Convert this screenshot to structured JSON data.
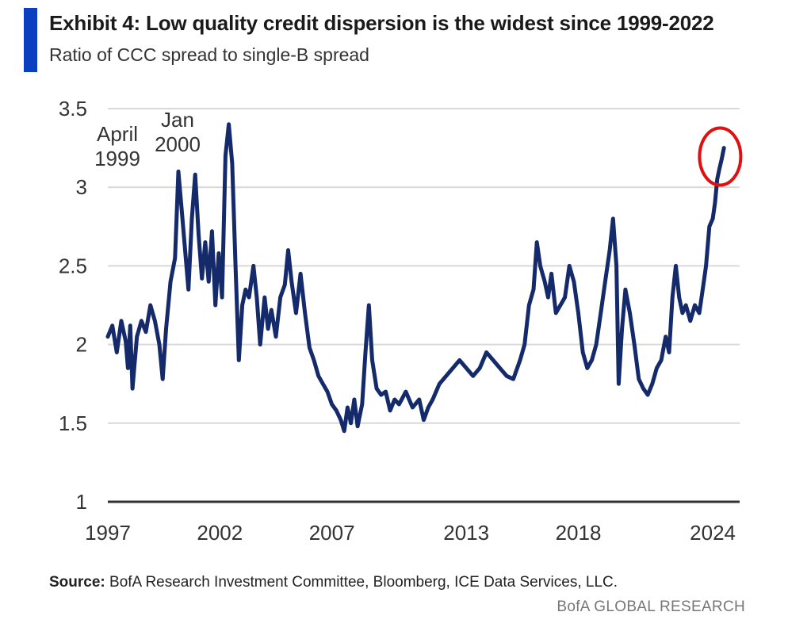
{
  "header": {
    "title": "Exhibit 4: Low quality credit dispersion is the widest since 1999-2022",
    "subtitle": "Ratio of CCC spread to single-B spread"
  },
  "footer": {
    "source_label": "Source:",
    "source_text": "BofA Research Investment Committee, Bloomberg, ICE Data Services, LLC.",
    "brand": "BofA GLOBAL RESEARCH"
  },
  "colors": {
    "line": "#142a6b",
    "accent": "#0a3fbf",
    "highlight": "#e01010",
    "grid": "#d9d9d9",
    "axis": "#333333"
  },
  "chart_data": {
    "type": "line",
    "title": "Exhibit 4: Low quality credit dispersion is the widest since 1999-2022",
    "subtitle": "Ratio of CCC spread to single-B spread",
    "xlabel": "",
    "ylabel": "",
    "xlim": [
      1997,
      2025.2
    ],
    "ylim": [
      1,
      3.5
    ],
    "x_ticks": [
      1997,
      2002,
      2007,
      2013,
      2018,
      2024
    ],
    "y_ticks": [
      1,
      1.5,
      2,
      2.5,
      3,
      3.5
    ],
    "grid": true,
    "annotations": [
      {
        "text_lines": [
          "April",
          "1999"
        ],
        "x": 1999.3,
        "y": 3.1
      },
      {
        "text_lines": [
          "Jan",
          "2000"
        ],
        "x": 2002.2,
        "y": 3.42
      }
    ],
    "highlight": {
      "shape": "circle",
      "x": 2024.4,
      "y": 3.18
    },
    "series": [
      {
        "name": "CCC / single-B spread ratio",
        "points": [
          [
            1997.0,
            2.05
          ],
          [
            1997.2,
            2.12
          ],
          [
            1997.4,
            1.95
          ],
          [
            1997.6,
            2.15
          ],
          [
            1997.8,
            2.02
          ],
          [
            1997.9,
            1.85
          ],
          [
            1998.0,
            2.12
          ],
          [
            1998.1,
            1.72
          ],
          [
            1998.3,
            2.05
          ],
          [
            1998.5,
            2.15
          ],
          [
            1998.7,
            2.08
          ],
          [
            1998.9,
            2.25
          ],
          [
            1999.1,
            2.15
          ],
          [
            1999.3,
            2.0
          ],
          [
            1999.45,
            1.78
          ],
          [
            1999.6,
            2.1
          ],
          [
            1999.8,
            2.4
          ],
          [
            2000.0,
            2.55
          ],
          [
            2000.15,
            3.1
          ],
          [
            2000.3,
            2.85
          ],
          [
            2000.45,
            2.6
          ],
          [
            2000.6,
            2.35
          ],
          [
            2000.75,
            2.8
          ],
          [
            2000.9,
            3.08
          ],
          [
            2001.05,
            2.7
          ],
          [
            2001.2,
            2.42
          ],
          [
            2001.35,
            2.65
          ],
          [
            2001.5,
            2.4
          ],
          [
            2001.65,
            2.72
          ],
          [
            2001.8,
            2.25
          ],
          [
            2001.95,
            2.58
          ],
          [
            2002.1,
            2.3
          ],
          [
            2002.25,
            3.2
          ],
          [
            2002.4,
            3.4
          ],
          [
            2002.55,
            3.15
          ],
          [
            2002.7,
            2.5
          ],
          [
            2002.85,
            1.9
          ],
          [
            2003.0,
            2.25
          ],
          [
            2003.15,
            2.35
          ],
          [
            2003.3,
            2.3
          ],
          [
            2003.5,
            2.5
          ],
          [
            2003.65,
            2.3
          ],
          [
            2003.8,
            2.0
          ],
          [
            2004.0,
            2.3
          ],
          [
            2004.15,
            2.1
          ],
          [
            2004.3,
            2.22
          ],
          [
            2004.5,
            2.05
          ],
          [
            2004.7,
            2.3
          ],
          [
            2004.9,
            2.38
          ],
          [
            2005.05,
            2.6
          ],
          [
            2005.2,
            2.4
          ],
          [
            2005.4,
            2.2
          ],
          [
            2005.6,
            2.45
          ],
          [
            2005.8,
            2.2
          ],
          [
            2006.0,
            1.98
          ],
          [
            2006.2,
            1.9
          ],
          [
            2006.4,
            1.8
          ],
          [
            2006.6,
            1.75
          ],
          [
            2006.8,
            1.7
          ],
          [
            2007.0,
            1.62
          ],
          [
            2007.2,
            1.58
          ],
          [
            2007.4,
            1.52
          ],
          [
            2007.55,
            1.45
          ],
          [
            2007.7,
            1.6
          ],
          [
            2007.85,
            1.5
          ],
          [
            2008.0,
            1.65
          ],
          [
            2008.15,
            1.48
          ],
          [
            2008.35,
            1.62
          ],
          [
            2008.5,
            1.95
          ],
          [
            2008.65,
            2.25
          ],
          [
            2008.8,
            1.9
          ],
          [
            2009.0,
            1.72
          ],
          [
            2009.2,
            1.68
          ],
          [
            2009.4,
            1.7
          ],
          [
            2009.6,
            1.58
          ],
          [
            2009.8,
            1.65
          ],
          [
            2010.0,
            1.62
          ],
          [
            2010.3,
            1.7
          ],
          [
            2010.6,
            1.6
          ],
          [
            2010.9,
            1.65
          ],
          [
            2011.1,
            1.52
          ],
          [
            2011.3,
            1.6
          ],
          [
            2011.5,
            1.65
          ],
          [
            2011.8,
            1.75
          ],
          [
            2012.1,
            1.8
          ],
          [
            2012.4,
            1.85
          ],
          [
            2012.7,
            1.9
          ],
          [
            2013.0,
            1.85
          ],
          [
            2013.3,
            1.8
          ],
          [
            2013.6,
            1.85
          ],
          [
            2013.9,
            1.95
          ],
          [
            2014.2,
            1.9
          ],
          [
            2014.5,
            1.85
          ],
          [
            2014.8,
            1.8
          ],
          [
            2015.1,
            1.78
          ],
          [
            2015.4,
            1.9
          ],
          [
            2015.6,
            2.0
          ],
          [
            2015.8,
            2.25
          ],
          [
            2016.0,
            2.35
          ],
          [
            2016.15,
            2.65
          ],
          [
            2016.3,
            2.5
          ],
          [
            2016.5,
            2.4
          ],
          [
            2016.65,
            2.3
          ],
          [
            2016.8,
            2.45
          ],
          [
            2017.0,
            2.2
          ],
          [
            2017.2,
            2.25
          ],
          [
            2017.4,
            2.3
          ],
          [
            2017.6,
            2.5
          ],
          [
            2017.8,
            2.4
          ],
          [
            2018.0,
            2.2
          ],
          [
            2018.2,
            1.95
          ],
          [
            2018.4,
            1.85
          ],
          [
            2018.6,
            1.9
          ],
          [
            2018.8,
            2.0
          ],
          [
            2019.0,
            2.2
          ],
          [
            2019.2,
            2.4
          ],
          [
            2019.4,
            2.6
          ],
          [
            2019.55,
            2.8
          ],
          [
            2019.7,
            2.5
          ],
          [
            2019.8,
            1.75
          ],
          [
            2019.95,
            2.1
          ],
          [
            2020.1,
            2.35
          ],
          [
            2020.3,
            2.2
          ],
          [
            2020.5,
            2.0
          ],
          [
            2020.7,
            1.78
          ],
          [
            2020.9,
            1.72
          ],
          [
            2021.1,
            1.68
          ],
          [
            2021.3,
            1.75
          ],
          [
            2021.5,
            1.85
          ],
          [
            2021.7,
            1.9
          ],
          [
            2021.9,
            2.05
          ],
          [
            2022.05,
            1.95
          ],
          [
            2022.2,
            2.3
          ],
          [
            2022.35,
            2.5
          ],
          [
            2022.5,
            2.3
          ],
          [
            2022.65,
            2.2
          ],
          [
            2022.8,
            2.25
          ],
          [
            2023.0,
            2.15
          ],
          [
            2023.2,
            2.25
          ],
          [
            2023.4,
            2.2
          ],
          [
            2023.55,
            2.35
          ],
          [
            2023.7,
            2.5
          ],
          [
            2023.85,
            2.75
          ],
          [
            2024.0,
            2.8
          ],
          [
            2024.1,
            2.9
          ],
          [
            2024.2,
            3.05
          ],
          [
            2024.3,
            3.12
          ],
          [
            2024.4,
            3.18
          ],
          [
            2024.5,
            3.25
          ]
        ]
      }
    ]
  }
}
